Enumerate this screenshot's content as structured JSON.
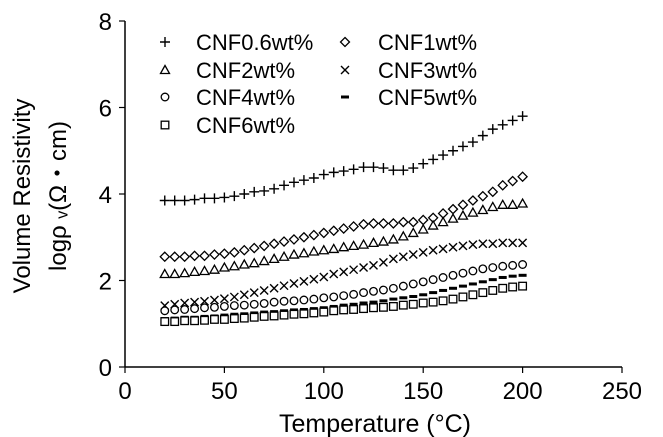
{
  "chart_data": {
    "type": "scatter",
    "xlabel": "Temperature (°C)",
    "ylabel_line1": "Volume Resistivity",
    "ylabel_line2": "logρ ᵥ(Ω・cm)",
    "xlim": [
      0,
      250
    ],
    "ylim": [
      0,
      8
    ],
    "xticks": [
      0,
      50,
      100,
      150,
      200,
      250
    ],
    "yticks": [
      0,
      2,
      4,
      6,
      8
    ],
    "grid": false,
    "legend_position": "top-left",
    "series": [
      {
        "name": "CNF0.6wt%",
        "marker": "plus",
        "x": [
          20,
          25,
          30,
          35,
          40,
          45,
          50,
          55,
          60,
          65,
          70,
          75,
          80,
          85,
          90,
          95,
          100,
          105,
          110,
          115,
          120,
          125,
          130,
          135,
          140,
          145,
          150,
          155,
          160,
          165,
          170,
          175,
          180,
          185,
          190,
          195,
          200
        ],
        "y": [
          3.85,
          3.85,
          3.85,
          3.87,
          3.9,
          3.9,
          3.92,
          3.95,
          4.0,
          4.05,
          4.07,
          4.12,
          4.2,
          4.27,
          4.32,
          4.37,
          4.45,
          4.5,
          4.53,
          4.57,
          4.62,
          4.62,
          4.6,
          4.55,
          4.55,
          4.6,
          4.7,
          4.8,
          4.9,
          5.0,
          5.1,
          5.2,
          5.35,
          5.5,
          5.6,
          5.7,
          5.8
        ]
      },
      {
        "name": "CNF1wt%",
        "marker": "diamond",
        "x": [
          20,
          25,
          30,
          35,
          40,
          45,
          50,
          55,
          60,
          65,
          70,
          75,
          80,
          85,
          90,
          95,
          100,
          105,
          110,
          115,
          120,
          125,
          130,
          135,
          140,
          145,
          150,
          155,
          160,
          165,
          170,
          175,
          180,
          185,
          190,
          195,
          200
        ],
        "y": [
          2.55,
          2.55,
          2.55,
          2.57,
          2.57,
          2.6,
          2.62,
          2.65,
          2.7,
          2.75,
          2.8,
          2.85,
          2.9,
          2.95,
          3.0,
          3.05,
          3.1,
          3.15,
          3.2,
          3.25,
          3.3,
          3.32,
          3.32,
          3.32,
          3.35,
          3.35,
          3.4,
          3.45,
          3.55,
          3.65,
          3.75,
          3.85,
          3.95,
          4.05,
          4.2,
          4.3,
          4.4
        ]
      },
      {
        "name": "CNF2wt%",
        "marker": "triangle",
        "x": [
          20,
          25,
          30,
          35,
          40,
          45,
          50,
          55,
          60,
          65,
          70,
          75,
          80,
          85,
          90,
          95,
          100,
          105,
          110,
          115,
          120,
          125,
          130,
          135,
          140,
          145,
          150,
          155,
          160,
          165,
          170,
          175,
          180,
          185,
          190,
          195,
          200
        ],
        "y": [
          2.15,
          2.15,
          2.17,
          2.2,
          2.22,
          2.25,
          2.3,
          2.33,
          2.37,
          2.4,
          2.45,
          2.5,
          2.55,
          2.6,
          2.63,
          2.67,
          2.7,
          2.73,
          2.77,
          2.8,
          2.83,
          2.87,
          2.9,
          2.95,
          3.02,
          3.1,
          3.18,
          3.27,
          3.35,
          3.43,
          3.5,
          3.57,
          3.63,
          3.7,
          3.75,
          3.75,
          3.78
        ]
      },
      {
        "name": "CNF3wt%",
        "marker": "x",
        "x": [
          20,
          25,
          30,
          35,
          40,
          45,
          50,
          55,
          60,
          65,
          70,
          75,
          80,
          85,
          90,
          95,
          100,
          105,
          110,
          115,
          120,
          125,
          130,
          135,
          140,
          145,
          150,
          155,
          160,
          165,
          170,
          175,
          180,
          185,
          190,
          195,
          200
        ],
        "y": [
          1.42,
          1.45,
          1.48,
          1.5,
          1.52,
          1.55,
          1.58,
          1.62,
          1.67,
          1.72,
          1.77,
          1.82,
          1.88,
          1.93,
          1.98,
          2.03,
          2.08,
          2.15,
          2.2,
          2.25,
          2.3,
          2.35,
          2.42,
          2.5,
          2.55,
          2.6,
          2.65,
          2.7,
          2.73,
          2.77,
          2.8,
          2.83,
          2.85,
          2.85,
          2.87,
          2.87,
          2.87
        ]
      },
      {
        "name": "CNF4wt%",
        "marker": "circle",
        "x": [
          20,
          25,
          30,
          35,
          40,
          45,
          50,
          55,
          60,
          65,
          70,
          75,
          80,
          85,
          90,
          95,
          100,
          105,
          110,
          115,
          120,
          125,
          130,
          135,
          140,
          145,
          150,
          155,
          160,
          165,
          170,
          175,
          180,
          185,
          190,
          195,
          200
        ],
        "y": [
          1.3,
          1.32,
          1.33,
          1.35,
          1.37,
          1.38,
          1.4,
          1.42,
          1.43,
          1.45,
          1.47,
          1.5,
          1.52,
          1.53,
          1.55,
          1.57,
          1.6,
          1.62,
          1.65,
          1.68,
          1.72,
          1.75,
          1.78,
          1.82,
          1.87,
          1.92,
          1.97,
          2.02,
          2.07,
          2.12,
          2.17,
          2.22,
          2.27,
          2.3,
          2.33,
          2.35,
          2.37
        ]
      },
      {
        "name": "CNF5wt%",
        "marker": "dash",
        "x": [
          20,
          25,
          30,
          35,
          40,
          45,
          50,
          55,
          60,
          65,
          70,
          75,
          80,
          85,
          90,
          95,
          100,
          105,
          110,
          115,
          120,
          125,
          130,
          135,
          140,
          145,
          150,
          155,
          160,
          165,
          170,
          175,
          180,
          185,
          190,
          195,
          200
        ],
        "y": [
          1.12,
          1.13,
          1.15,
          1.15,
          1.17,
          1.18,
          1.2,
          1.22,
          1.23,
          1.25,
          1.27,
          1.28,
          1.3,
          1.32,
          1.33,
          1.35,
          1.37,
          1.4,
          1.43,
          1.45,
          1.48,
          1.5,
          1.53,
          1.57,
          1.6,
          1.63,
          1.67,
          1.72,
          1.77,
          1.82,
          1.87,
          1.92,
          1.97,
          2.02,
          2.07,
          2.1,
          2.12
        ]
      },
      {
        "name": "CNF6wt%",
        "marker": "square",
        "x": [
          20,
          25,
          30,
          35,
          40,
          45,
          50,
          55,
          60,
          65,
          70,
          75,
          80,
          85,
          90,
          95,
          100,
          105,
          110,
          115,
          120,
          125,
          130,
          135,
          140,
          145,
          150,
          155,
          160,
          165,
          170,
          175,
          180,
          185,
          190,
          195,
          200
        ],
        "y": [
          1.05,
          1.05,
          1.07,
          1.07,
          1.08,
          1.1,
          1.1,
          1.12,
          1.13,
          1.15,
          1.17,
          1.18,
          1.2,
          1.22,
          1.23,
          1.25,
          1.27,
          1.3,
          1.32,
          1.33,
          1.35,
          1.37,
          1.38,
          1.4,
          1.43,
          1.45,
          1.48,
          1.5,
          1.53,
          1.57,
          1.62,
          1.67,
          1.72,
          1.77,
          1.82,
          1.85,
          1.87
        ]
      }
    ]
  }
}
